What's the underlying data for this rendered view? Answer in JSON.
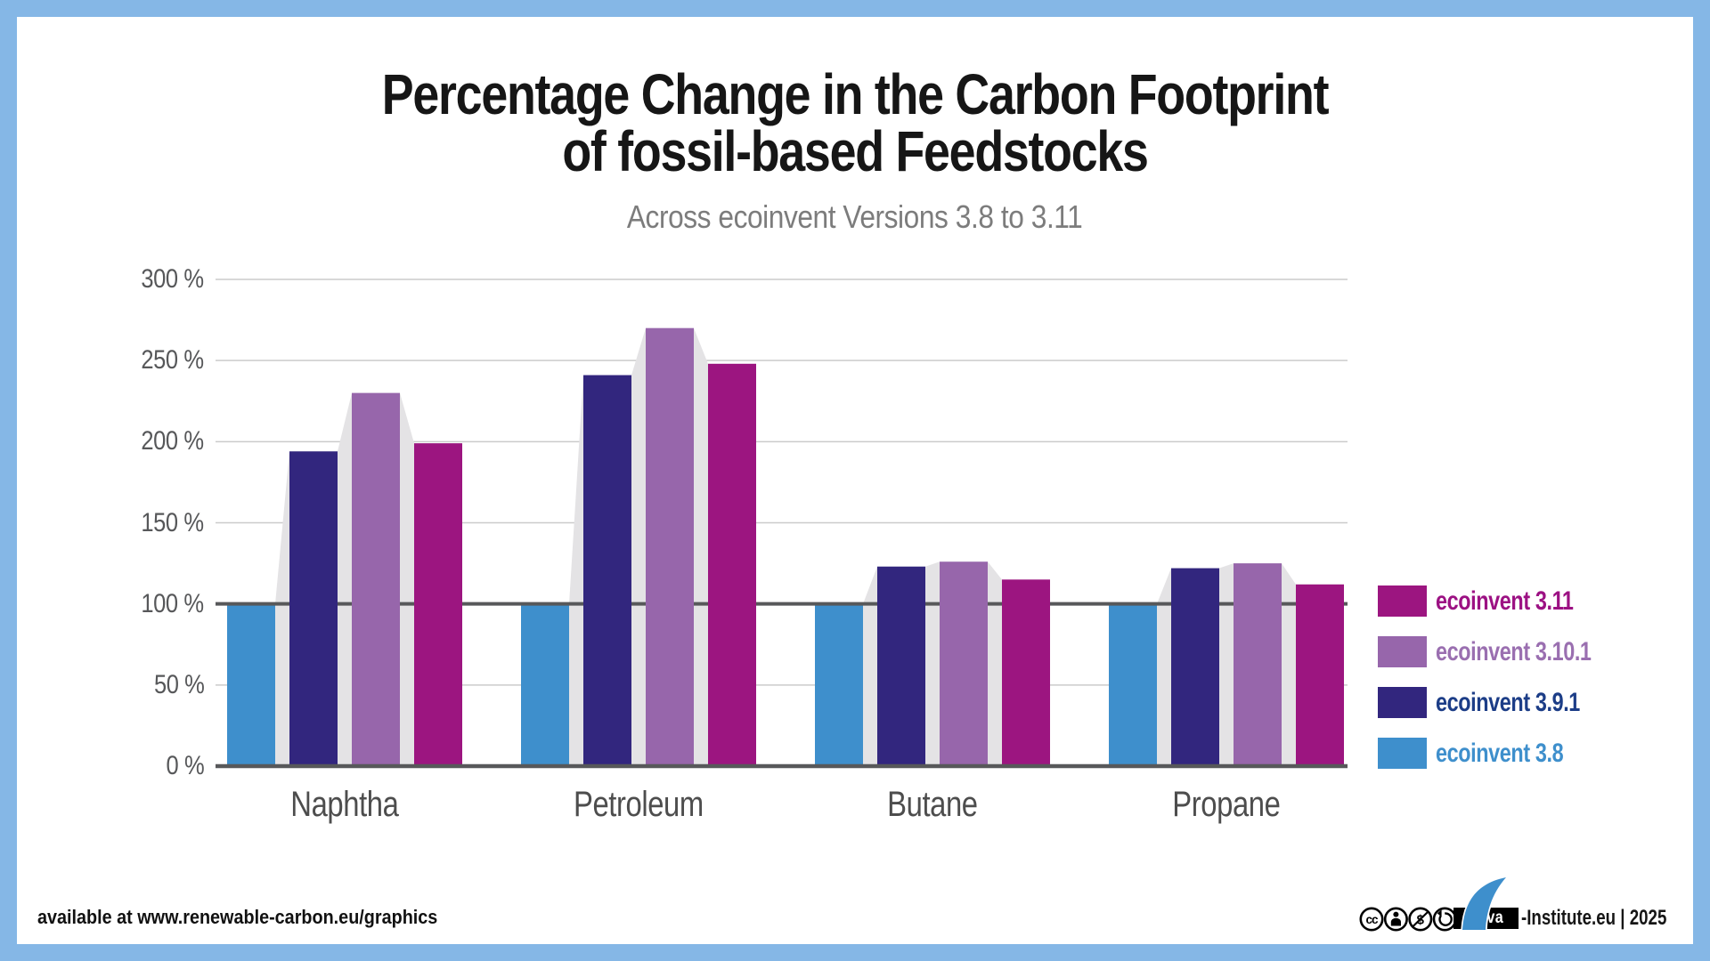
{
  "frame": {
    "border_color": "#85B7E6",
    "card_color": "#FFFFFF"
  },
  "title": {
    "line1": "Percentage Change in the Carbon Footprint",
    "line2": "of fossil-based Feedstocks",
    "subtitle": "Across ecoinvent Versions 3.8 to 3.11"
  },
  "chart_data": {
    "type": "bar",
    "categories": [
      "Naphtha",
      "Petroleum",
      "Butane",
      "Propane"
    ],
    "series": [
      {
        "name": "ecoinvent 3.8",
        "color": "#3E8FCC",
        "label_color": "#3E8FCC",
        "values": [
          100,
          100,
          100,
          100
        ]
      },
      {
        "name": "ecoinvent 3.9.1",
        "color": "#32267E",
        "label_color": "#1C3D87",
        "values": [
          194,
          241,
          123,
          122
        ]
      },
      {
        "name": "ecoinvent 3.10.1",
        "color": "#9766AB",
        "label_color": "#9A6FB0",
        "values": [
          230,
          270,
          126,
          125
        ]
      },
      {
        "name": "ecoinvent 3.11",
        "color": "#9C1580",
        "label_color": "#9C1183",
        "values": [
          199,
          248,
          115,
          112
        ]
      }
    ],
    "yticks": [
      {
        "value": 0,
        "label": "0 %"
      },
      {
        "value": 50,
        "label": "50 %"
      },
      {
        "value": 100,
        "label": "100 %"
      },
      {
        "value": 150,
        "label": "150 %"
      },
      {
        "value": 200,
        "label": "200 %"
      },
      {
        "value": 250,
        "label": "250 %"
      },
      {
        "value": 300,
        "label": "300 %"
      }
    ],
    "ylim": [
      0,
      300
    ],
    "baseline_value": 100,
    "grid": "horizontal",
    "legend_position": "right",
    "legend_order_top_to_bottom": [
      "ecoinvent 3.11",
      "ecoinvent 3.10.1",
      "ecoinvent 3.9.1",
      "ecoinvent 3.8"
    ],
    "colors": {
      "grid_light": "#CBCBCB",
      "axis_dark": "#57585A",
      "bar_shadow": "#E4E3E5",
      "tick_label": "#57585A",
      "category_label": "#4D4D4D"
    }
  },
  "footer": {
    "left_text": "available at www.renewable-carbon.eu/graphics",
    "license_icons": [
      "cc",
      "by",
      "nc",
      "sa"
    ],
    "logo_text": "nova",
    "right_text": "-Institute.eu | 2025"
  }
}
